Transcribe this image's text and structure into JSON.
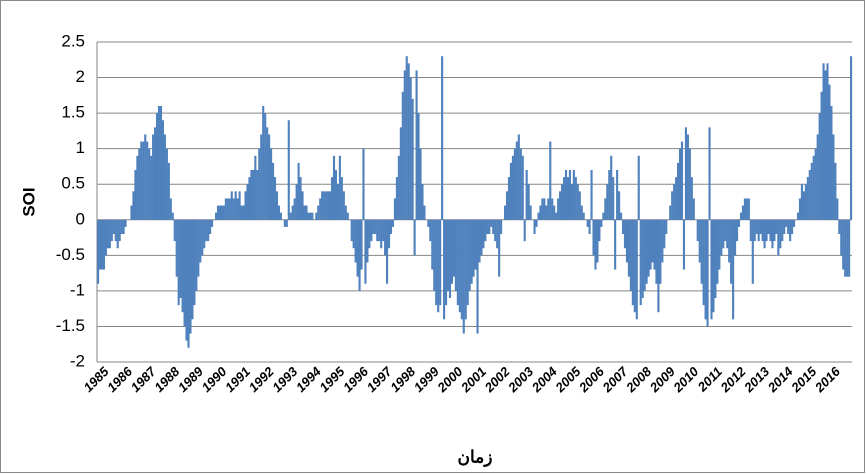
{
  "chart_data": {
    "type": "bar",
    "x_label": "زمان",
    "y_label": "SOI",
    "color": "#4f81bd",
    "grid": true,
    "ylim": [
      -2,
      2.5
    ],
    "yticks": [
      2.5,
      2,
      1.5,
      1,
      0.5,
      0,
      -0.5,
      -1,
      -1.5,
      -2
    ],
    "categories": [
      "1985",
      null,
      null,
      null,
      null,
      null,
      null,
      null,
      null,
      null,
      null,
      null,
      "1986",
      null,
      null,
      null,
      null,
      null,
      null,
      null,
      null,
      null,
      null,
      null,
      "1987",
      null,
      null,
      null,
      null,
      null,
      null,
      null,
      null,
      null,
      null,
      null,
      "1988",
      null,
      null,
      null,
      null,
      null,
      null,
      null,
      null,
      null,
      null,
      null,
      "1989",
      null,
      null,
      null,
      null,
      null,
      null,
      null,
      null,
      null,
      null,
      null,
      "1990",
      null,
      null,
      null,
      null,
      null,
      null,
      null,
      null,
      null,
      null,
      null,
      "1991",
      null,
      null,
      null,
      null,
      null,
      null,
      null,
      null,
      null,
      null,
      null,
      "1992",
      null,
      null,
      null,
      null,
      null,
      null,
      null,
      null,
      null,
      null,
      null,
      "1993",
      null,
      null,
      null,
      null,
      null,
      null,
      null,
      null,
      null,
      null,
      null,
      "1994",
      null,
      null,
      null,
      null,
      null,
      null,
      null,
      null,
      null,
      null,
      null,
      "1995",
      null,
      null,
      null,
      null,
      null,
      null,
      null,
      null,
      null,
      null,
      null,
      "1996",
      null,
      null,
      null,
      null,
      null,
      null,
      null,
      null,
      null,
      null,
      null,
      "1997",
      null,
      null,
      null,
      null,
      null,
      null,
      null,
      null,
      null,
      null,
      null,
      "1998",
      null,
      null,
      null,
      null,
      null,
      null,
      null,
      null,
      null,
      null,
      null,
      "1999",
      null,
      null,
      null,
      null,
      null,
      null,
      null,
      null,
      null,
      null,
      null,
      "2000",
      null,
      null,
      null,
      null,
      null,
      null,
      null,
      null,
      null,
      null,
      null,
      "2001",
      null,
      null,
      null,
      null,
      null,
      null,
      null,
      null,
      null,
      null,
      null,
      "2002",
      null,
      null,
      null,
      null,
      null,
      null,
      null,
      null,
      null,
      null,
      null,
      "2003",
      null,
      null,
      null,
      null,
      null,
      null,
      null,
      null,
      null,
      null,
      null,
      "2004",
      null,
      null,
      null,
      null,
      null,
      null,
      null,
      null,
      null,
      null,
      null,
      "2005",
      null,
      null,
      null,
      null,
      null,
      null,
      null,
      null,
      null,
      null,
      null,
      "2006",
      null,
      null,
      null,
      null,
      null,
      null,
      null,
      null,
      null,
      null,
      null,
      "2007",
      null,
      null,
      null,
      null,
      null,
      null,
      null,
      null,
      null,
      null,
      null,
      "2008",
      null,
      null,
      null,
      null,
      null,
      null,
      null,
      null,
      null,
      null,
      null,
      "2009",
      null,
      null,
      null,
      null,
      null,
      null,
      null,
      null,
      null,
      null,
      null,
      "2010",
      null,
      null,
      null,
      null,
      null,
      null,
      null,
      null,
      null,
      null,
      null,
      "2011",
      null,
      null,
      null,
      null,
      null,
      null,
      null,
      null,
      null,
      null,
      null,
      "2012",
      null,
      null,
      null,
      null,
      null,
      null,
      null,
      null,
      null,
      null,
      null,
      "2013",
      null,
      null,
      null,
      null,
      null,
      null,
      null,
      null,
      null,
      null,
      null,
      "2014",
      null,
      null,
      null,
      null,
      null,
      null,
      null,
      null,
      null,
      null,
      null,
      "2015",
      null,
      null,
      null,
      null,
      null,
      null,
      null,
      null,
      null,
      null,
      null,
      "2016",
      null,
      null,
      null,
      null,
      null,
      null,
      null,
      null,
      null,
      null,
      null
    ],
    "values": [
      -0.9,
      -0.7,
      -0.7,
      -0.7,
      -0.5,
      -0.4,
      -0.4,
      -0.3,
      -0.2,
      -0.3,
      -0.4,
      -0.3,
      -0.2,
      -0.2,
      -0.1,
      0,
      0,
      0.2,
      0.4,
      0.7,
      0.9,
      1.0,
      1.1,
      1.1,
      1.2,
      1.1,
      1.0,
      0.9,
      1.2,
      1.3,
      1.5,
      1.6,
      1.6,
      1.4,
      1.2,
      1.0,
      0.8,
      0.3,
      0.1,
      -0.3,
      -0.8,
      -1.2,
      -1.1,
      -1.3,
      -1.5,
      -1.7,
      -1.8,
      -1.6,
      -1.4,
      -1.2,
      -1.0,
      -0.8,
      -0.6,
      -0.5,
      -0.4,
      -0.3,
      -0.3,
      -0.2,
      -0.1,
      0,
      0.1,
      0.2,
      0.2,
      0.2,
      0.2,
      0.3,
      0.3,
      0.3,
      0.4,
      0.3,
      0.4,
      0.3,
      0.4,
      0.2,
      0.2,
      0.4,
      0.5,
      0.6,
      0.7,
      0.7,
      0.9,
      0.7,
      1.0,
      1.2,
      1.6,
      1.5,
      1.3,
      1.2,
      1.0,
      0.8,
      0.6,
      0.4,
      0.2,
      0.1,
      0,
      -0.1,
      -0.1,
      1.4,
      0.1,
      0.2,
      0.3,
      0.5,
      0.8,
      0.6,
      0.4,
      0.2,
      0.2,
      0.1,
      0.1,
      0.1,
      0,
      0.1,
      0.2,
      0.3,
      0.4,
      0.4,
      0.4,
      0.4,
      0.4,
      0.6,
      0.9,
      0.7,
      0.5,
      0.9,
      0.6,
      0.4,
      0.2,
      0.1,
      0,
      -0.3,
      -0.4,
      -0.6,
      -0.8,
      -1.0,
      -0.7,
      1.0,
      -0.9,
      -0.6,
      -0.4,
      -0.3,
      -0.2,
      -0.2,
      -0.3,
      -0.3,
      -0.4,
      -0.3,
      -0.5,
      -0.9,
      -0.4,
      -0.2,
      -0.1,
      0.3,
      0.6,
      0.9,
      1.3,
      1.8,
      2.1,
      2.3,
      2.2,
      2.0,
      1.7,
      -0.5,
      2.1,
      1.5,
      1.0,
      0.5,
      0.2,
      0,
      -0.1,
      -0.3,
      -0.7,
      -1.0,
      -1.2,
      -1.3,
      -1.2,
      2.3,
      -1.4,
      -1.2,
      -1.0,
      -1.1,
      -0.9,
      -0.8,
      -1.0,
      -1.2,
      -1.3,
      -1.4,
      -1.6,
      -1.4,
      -1.2,
      -1.0,
      -0.9,
      -0.8,
      -0.7,
      -1.6,
      -0.6,
      -0.5,
      -0.4,
      -0.3,
      -0.2,
      -0.2,
      -0.1,
      -0.2,
      -0.3,
      -0.4,
      -0.8,
      -0.2,
      0,
      0.2,
      0.4,
      0.6,
      0.8,
      0.9,
      1.0,
      1.1,
      1.2,
      1.0,
      0.9,
      -0.3,
      0.7,
      0.5,
      0.2,
      0,
      -0.2,
      -0.1,
      0.1,
      0.2,
      0.3,
      0.3,
      0.2,
      0.3,
      1.1,
      0.3,
      0.2,
      0.1,
      0.3,
      0.4,
      0.5,
      0.6,
      0.7,
      0.6,
      0.7,
      0.5,
      0.7,
      0.6,
      0.5,
      0.4,
      0.2,
      0.1,
      0,
      -0.1,
      -0.2,
      0.7,
      -0.5,
      -0.7,
      -0.6,
      -0.3,
      -0.1,
      0.1,
      0.3,
      0.5,
      0.7,
      0.9,
      0.6,
      -0.7,
      0.7,
      0.4,
      0.1,
      -0.2,
      -0.4,
      -0.6,
      -0.8,
      -1.0,
      -1.2,
      -1.3,
      -1.4,
      0.9,
      -1.2,
      -1.1,
      -1.0,
      -0.9,
      -0.8,
      -0.7,
      -0.6,
      -0.7,
      -0.9,
      -1.3,
      -0.9,
      -0.6,
      -0.4,
      -0.2,
      0,
      0.2,
      0.4,
      0.5,
      0.6,
      0.8,
      1.0,
      1.1,
      -0.7,
      1.3,
      1.2,
      1.0,
      0.6,
      0.3,
      0,
      -0.3,
      -0.6,
      -0.9,
      -1.2,
      -1.4,
      -1.5,
      1.3,
      -1.4,
      -1.3,
      -1.1,
      -0.9,
      -0.7,
      -0.5,
      -0.4,
      -0.3,
      -0.4,
      -0.6,
      -0.9,
      -1.4,
      -0.5,
      -0.3,
      -0.1,
      0.1,
      0.2,
      0.3,
      0.3,
      0.3,
      -0.3,
      -0.9,
      -0.3,
      -0.2,
      -0.3,
      -0.2,
      -0.3,
      -0.4,
      -0.3,
      -0.2,
      -0.3,
      -0.4,
      -0.3,
      -0.2,
      -0.5,
      -0.4,
      -0.3,
      -0.2,
      -0.1,
      -0.2,
      -0.3,
      -0.2,
      -0.1,
      0,
      0.1,
      0.3,
      0.5,
      0.4,
      0.5,
      0.6,
      0.7,
      0.8,
      0.9,
      1.0,
      1.2,
      1.5,
      1.8,
      2.2,
      2.1,
      2.2,
      1.9,
      1.6,
      1.2,
      0.8,
      0.3,
      -0.2,
      -0.5,
      -0.7,
      -0.8,
      -0.8,
      -0.8,
      2.3
    ]
  }
}
